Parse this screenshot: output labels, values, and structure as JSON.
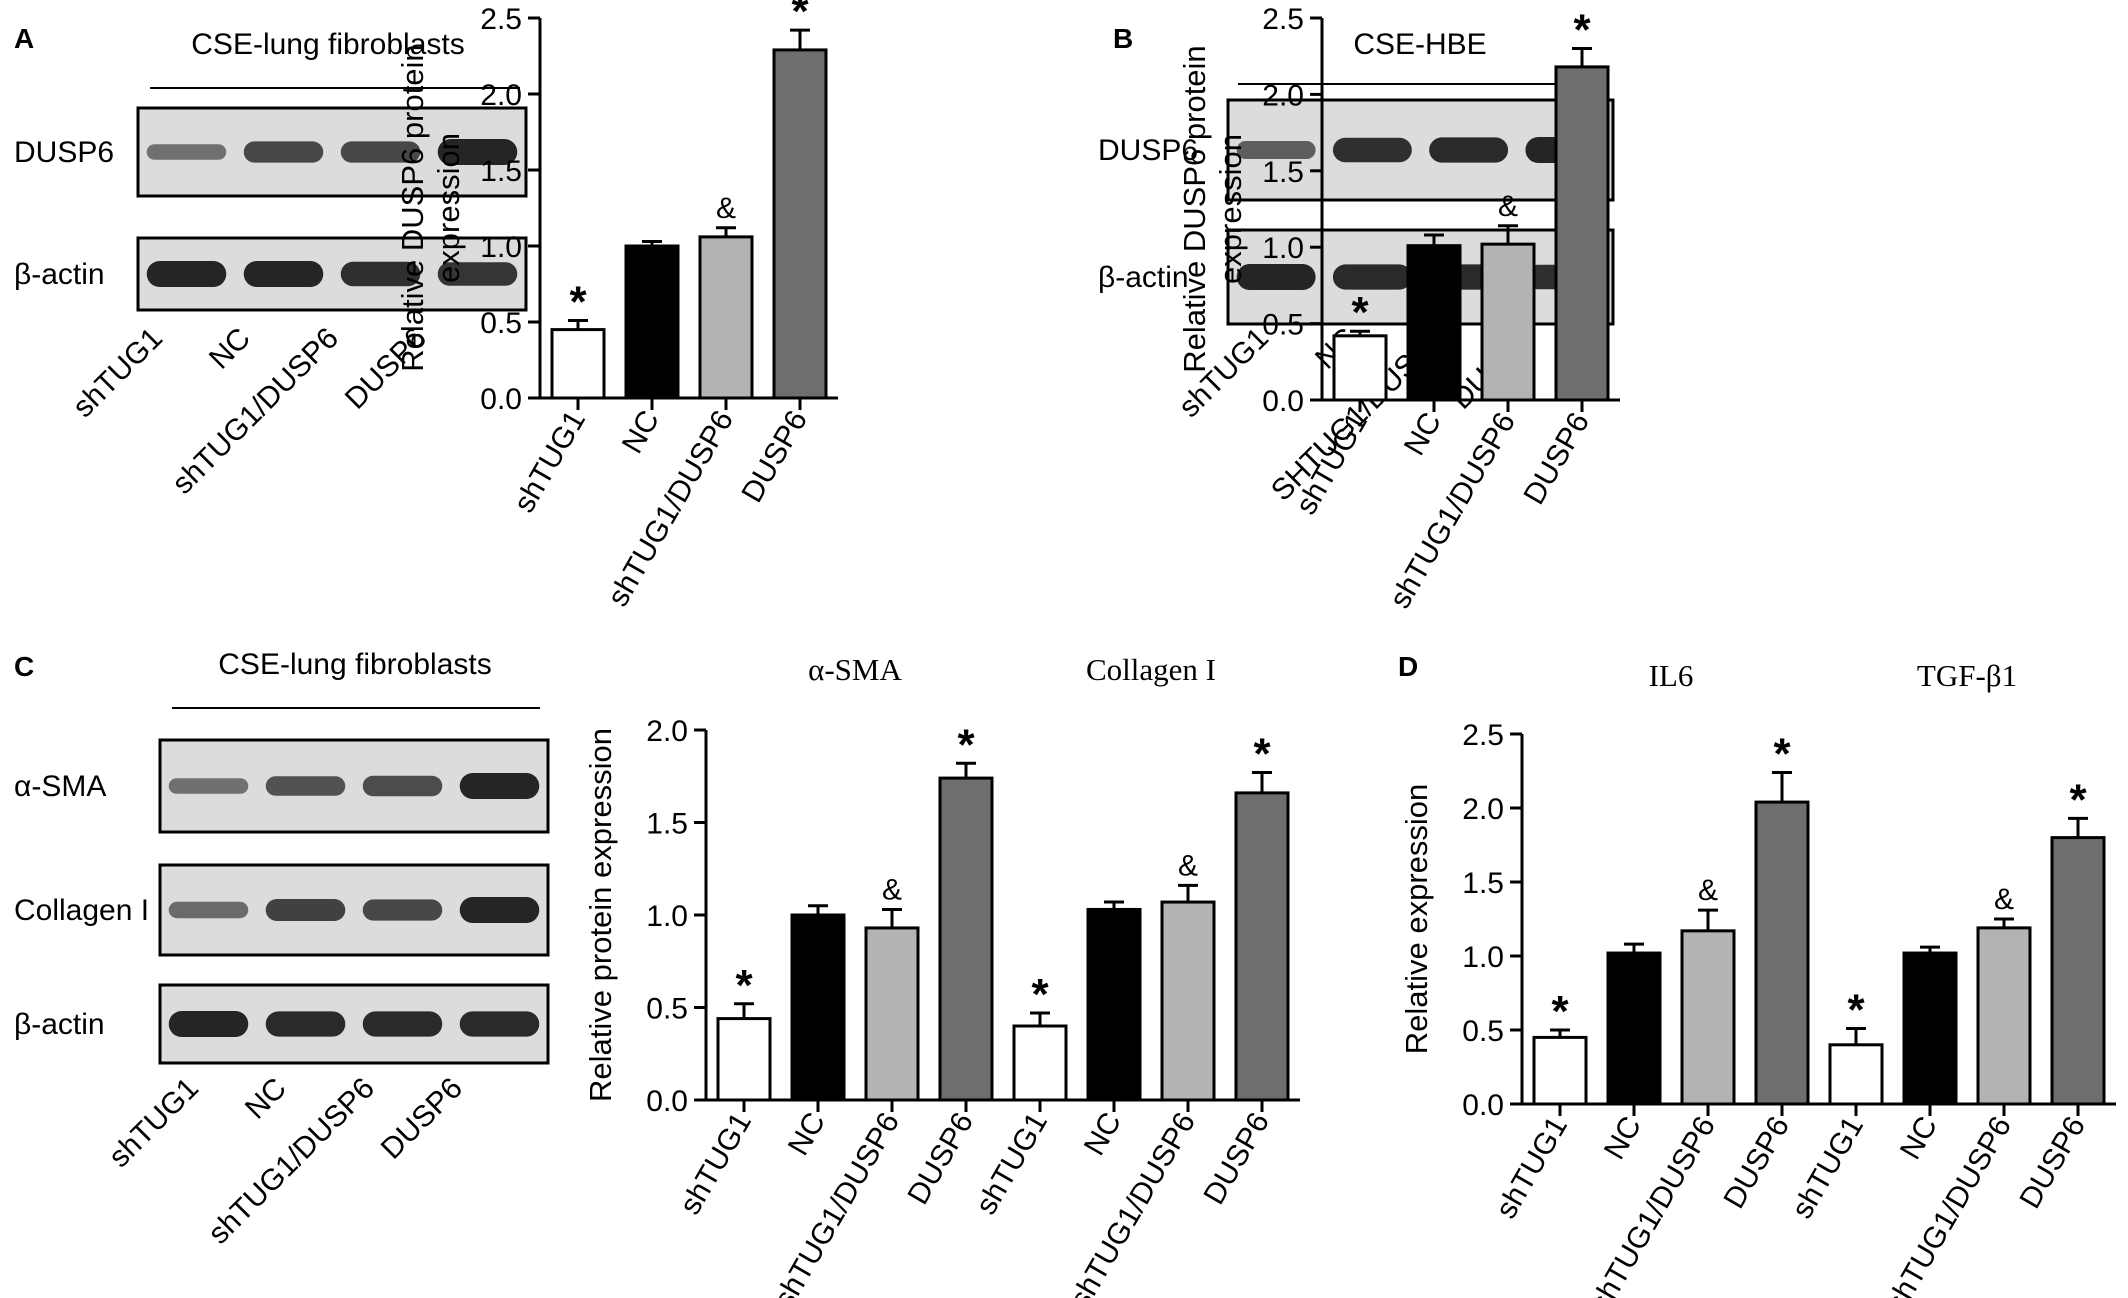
{
  "colors": {
    "shTUG1": "#ffffff",
    "NC": "#000000",
    "shTUG1_DUSP6": "#b3b3b3",
    "DUSP6": "#6e6e6e",
    "blot_bg": "#dcdcdc",
    "band": "#1a1a1a"
  },
  "panels": [
    {
      "letter": "A",
      "title": "CSE-lung fibroblasts",
      "blot_rows": [
        "DUSP6",
        "β-actin"
      ],
      "lanes": [
        "shTUG1",
        "NC",
        "shTUG1/DUSP6",
        "DUSP6"
      ],
      "band_intensity": [
        [
          0.35,
          0.7,
          0.7,
          1.0
        ],
        [
          1.0,
          1.0,
          0.9,
          0.85
        ]
      ]
    },
    {
      "letter": "B",
      "title": "CSE-HBE",
      "blot_rows": [
        "DUSP6",
        "β-actin"
      ],
      "lanes": [
        "shTUG1",
        "NC",
        "SHTUG1/DUSP6",
        "DUSP6"
      ],
      "band_intensity": [
        [
          0.5,
          0.9,
          0.95,
          1.0
        ],
        [
          1.0,
          0.95,
          0.95,
          0.9
        ]
      ]
    },
    {
      "letter": "C",
      "title": "CSE-lung fibroblasts",
      "blot_rows": [
        "α-SMA",
        "Collagen I",
        "β-actin"
      ],
      "lanes": [
        "shTUG1",
        "NC",
        "shTUG1/DUSP6",
        "DUSP6"
      ],
      "band_intensity": [
        [
          0.35,
          0.6,
          0.65,
          1.0
        ],
        [
          0.4,
          0.75,
          0.7,
          1.0
        ],
        [
          1.0,
          0.95,
          0.95,
          0.95
        ]
      ]
    },
    {
      "letter": "D",
      "title": "",
      "blot_rows": [],
      "lanes": [],
      "band_intensity": []
    }
  ],
  "chart_data": [
    {
      "type": "bar",
      "panel": "A",
      "ylabel": "Relative DUSP6 protein expression",
      "ylim": [
        0,
        2.5
      ],
      "yticks": [
        "0.0",
        "0.5",
        "1.0",
        "1.5",
        "2.0",
        "2.5"
      ],
      "groups": [
        {
          "title": "",
          "categories": [
            "shTUG1",
            "NC",
            "shTUG1/DUSP6",
            "DUSP6"
          ],
          "values": [
            0.45,
            1.0,
            1.06,
            2.29
          ],
          "errors": [
            0.06,
            0.03,
            0.06,
            0.13
          ],
          "marks": [
            "*",
            "",
            "&",
            "*"
          ]
        }
      ]
    },
    {
      "type": "bar",
      "panel": "B",
      "ylabel": "Relative DUSP6 protein expression",
      "ylim": [
        0,
        2.5
      ],
      "yticks": [
        "0.0",
        "0.5",
        "1.0",
        "1.5",
        "2.0",
        "2.5"
      ],
      "groups": [
        {
          "title": "",
          "categories": [
            "shTUG1",
            "NC",
            "shTUG1/DUSP6",
            "DUSP6"
          ],
          "values": [
            0.42,
            1.01,
            1.02,
            2.18
          ],
          "errors": [
            0.03,
            0.07,
            0.12,
            0.12
          ],
          "marks": [
            "*",
            "",
            "&",
            "*"
          ]
        }
      ]
    },
    {
      "type": "bar",
      "panel": "C",
      "ylabel": "Relative protein expression",
      "ylim": [
        0,
        2.0
      ],
      "yticks": [
        "0.0",
        "0.5",
        "1.0",
        "1.5",
        "2.0"
      ],
      "groups": [
        {
          "title": "α-SMA",
          "categories": [
            "shTUG1",
            "NC",
            "shTUG1/DUSP6",
            "DUSP6"
          ],
          "values": [
            0.44,
            1.0,
            0.93,
            1.74
          ],
          "errors": [
            0.08,
            0.05,
            0.1,
            0.08
          ],
          "marks": [
            "*",
            "",
            "&",
            "*"
          ]
        },
        {
          "title": "Collagen I",
          "categories": [
            "shTUG1",
            "NC",
            "shTUG1/DUSP6",
            "DUSP6"
          ],
          "values": [
            0.4,
            1.03,
            1.07,
            1.66
          ],
          "errors": [
            0.07,
            0.04,
            0.09,
            0.11
          ],
          "marks": [
            "*",
            "",
            "&",
            "*"
          ]
        }
      ]
    },
    {
      "type": "bar",
      "panel": "D",
      "ylabel": "Relative expression",
      "ylim": [
        0,
        2.5
      ],
      "yticks": [
        "0.0",
        "0.5",
        "1.0",
        "1.5",
        "2.0",
        "2.5"
      ],
      "groups": [
        {
          "title": "IL6",
          "categories": [
            "shTUG1",
            "NC",
            "shTUG1/DUSP6",
            "DUSP6"
          ],
          "values": [
            0.45,
            1.02,
            1.17,
            2.04
          ],
          "errors": [
            0.05,
            0.06,
            0.14,
            0.2
          ],
          "marks": [
            "*",
            "",
            "&",
            "*"
          ]
        },
        {
          "title": "TGF-β1",
          "categories": [
            "shTUG1",
            "NC",
            "shTUG1/DUSP6",
            "DUSP6"
          ],
          "values": [
            0.4,
            1.02,
            1.19,
            1.8
          ],
          "errors": [
            0.11,
            0.04,
            0.06,
            0.13
          ],
          "marks": [
            "*",
            "",
            "&",
            "*"
          ]
        }
      ]
    }
  ]
}
